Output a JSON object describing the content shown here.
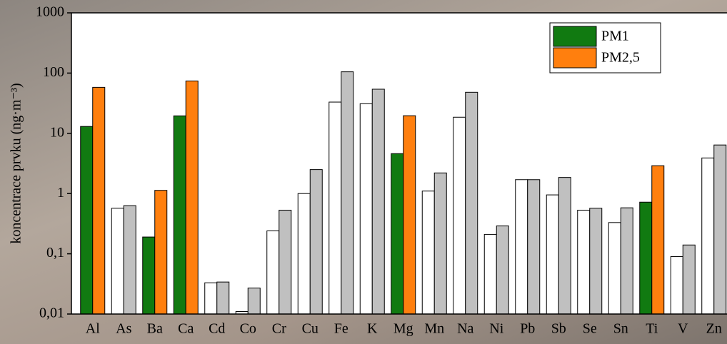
{
  "chart_data": {
    "type": "bar",
    "y_label": "koncentrace prvku (ng·m⁻³)",
    "log_y": true,
    "ylim": [
      0.01,
      1000
    ],
    "yticks": [
      {
        "value": 0.01,
        "label": "0,01"
      },
      {
        "value": 0.1,
        "label": "0,1"
      },
      1,
      10,
      100,
      1000
    ],
    "categories": [
      "Al",
      "As",
      "Ba",
      "Ca",
      "Cd",
      "Co",
      "Cr",
      "Cu",
      "Fe",
      "K",
      "Mg",
      "Mn",
      "Na",
      "Ni",
      "Pb",
      "Sb",
      "Se",
      "Sn",
      "Ti",
      "V",
      "Zn"
    ],
    "series": [
      {
        "name": "PM1",
        "color": "#117a11",
        "colors": [
          "#117a11",
          "#ffffff",
          "#117a11",
          "#117a11",
          "#ffffff",
          "#ffffff",
          "#ffffff",
          "#ffffff",
          "#ffffff",
          "#ffffff",
          "#117a11",
          "#ffffff",
          "#ffffff",
          "#ffffff",
          "#ffffff",
          "#ffffff",
          "#ffffff",
          "#ffffff",
          "#117a11",
          "#ffffff",
          "#ffffff"
        ],
        "values": [
          13,
          0.57,
          0.19,
          19.5,
          0.033,
          0.011,
          0.24,
          1.0,
          33,
          31,
          4.6,
          1.1,
          18.5,
          0.21,
          1.7,
          0.95,
          0.53,
          0.33,
          0.72,
          0.09,
          3.9
        ]
      },
      {
        "name": "PM2,5",
        "color": "#ff7f0e",
        "colors": [
          "#ff7f0e",
          "#c0c0c0",
          "#ff7f0e",
          "#ff7f0e",
          "#c0c0c0",
          "#c0c0c0",
          "#c0c0c0",
          "#c0c0c0",
          "#c0c0c0",
          "#c0c0c0",
          "#ff7f0e",
          "#c0c0c0",
          "#c0c0c0",
          "#c0c0c0",
          "#c0c0c0",
          "#c0c0c0",
          "#c0c0c0",
          "#c0c0c0",
          "#ff7f0e",
          "#c0c0c0",
          "#c0c0c0"
        ],
        "values": [
          58,
          0.63,
          1.13,
          74,
          0.034,
          0.027,
          0.53,
          2.5,
          105,
          54,
          19.6,
          2.2,
          48,
          0.29,
          1.7,
          1.85,
          0.57,
          0.58,
          2.9,
          0.14,
          6.4
        ]
      }
    ],
    "legend": "top-right"
  }
}
